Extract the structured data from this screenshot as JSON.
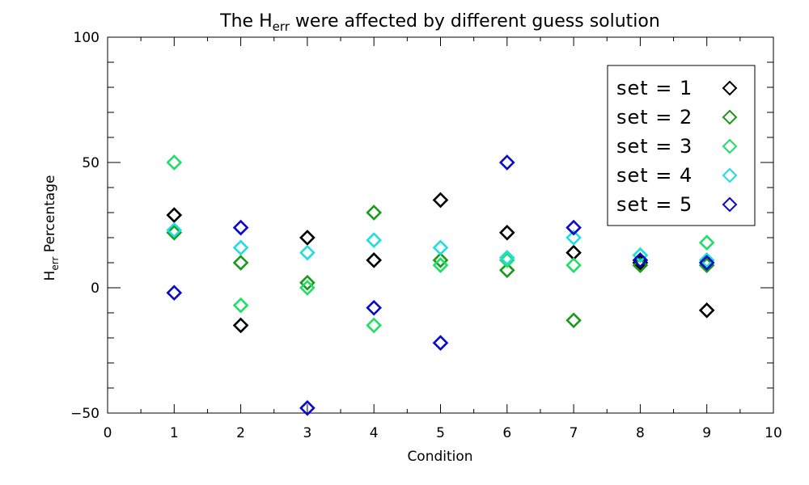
{
  "chart_data": {
    "type": "scatter",
    "title_prefix": "The H",
    "title_sub": "err",
    "title_suffix": " were affected by different guess solution",
    "xlabel": "Condition",
    "ylabel_prefix": "H",
    "ylabel_sub": "err",
    "ylabel_suffix": " Percentage",
    "xlim": [
      0,
      10
    ],
    "ylim": [
      -50,
      100
    ],
    "x_ticks": [
      "0",
      "1",
      "2",
      "3",
      "4",
      "5",
      "6",
      "7",
      "8",
      "9",
      "10"
    ],
    "y_ticks": [
      "−50",
      "0",
      "50",
      "100"
    ],
    "legend_position": "top-right",
    "marker": "diamond",
    "series": [
      {
        "name": "set = 1",
        "color": "#000000",
        "x": [
          1,
          2,
          3,
          4,
          5,
          6,
          7,
          8,
          9
        ],
        "y": [
          29,
          -15,
          20,
          11,
          35,
          22,
          14,
          10,
          -9
        ]
      },
      {
        "name": "set = 2",
        "color": "#1a9a1a",
        "x": [
          1,
          2,
          3,
          4,
          5,
          6,
          7,
          8,
          9
        ],
        "y": [
          22,
          10,
          2,
          30,
          11,
          7,
          -13,
          9,
          9
        ]
      },
      {
        "name": "set = 3",
        "color": "#22dd66",
        "x": [
          1,
          2,
          3,
          4,
          5,
          6,
          7,
          8,
          9
        ],
        "y": [
          50,
          -7,
          0,
          -15,
          9,
          11,
          9,
          13,
          18
        ]
      },
      {
        "name": "set = 4",
        "color": "#22dddd",
        "x": [
          1,
          2,
          3,
          4,
          5,
          6,
          7,
          8,
          9
        ],
        "y": [
          23,
          16,
          14,
          19,
          16,
          12,
          20,
          13,
          11
        ]
      },
      {
        "name": "set = 5",
        "color": "#0a0ac8",
        "x": [
          1,
          2,
          3,
          4,
          5,
          6,
          7,
          8,
          9
        ],
        "y": [
          -2,
          24,
          -48,
          -8,
          -22,
          50,
          24,
          11,
          10
        ]
      }
    ]
  }
}
